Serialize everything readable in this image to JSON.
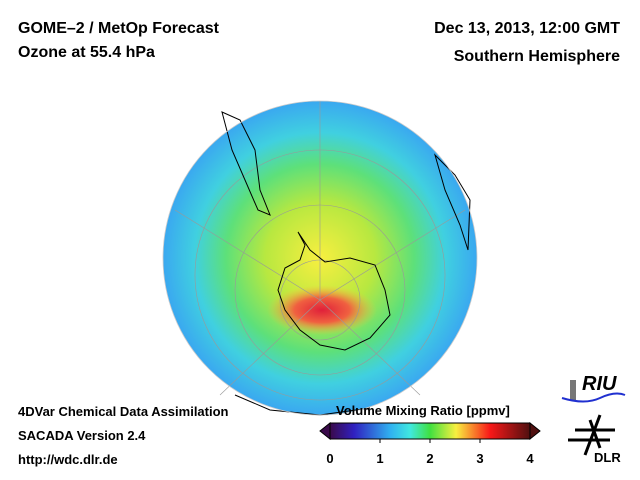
{
  "header": {
    "title": "GOME–2 / MetOp Forecast",
    "subtitle": "Ozone at 55.4 hPa",
    "datetime": "Dec 13, 2013, 12:00 GMT",
    "region": "Southern Hemisphere"
  },
  "footer": {
    "line1": "4DVar Chemical Data Assimilation",
    "line2": "SACADA Version 2.4",
    "url": "http://wdc.dlr.de"
  },
  "colorbar": {
    "title": "Volume Mixing Ratio [ppmv]",
    "ticks": [
      "0",
      "1",
      "2",
      "3",
      "4"
    ],
    "range": [
      0,
      4
    ]
  },
  "logos": {
    "riu": "RIU",
    "dlr": "DLR"
  }
}
